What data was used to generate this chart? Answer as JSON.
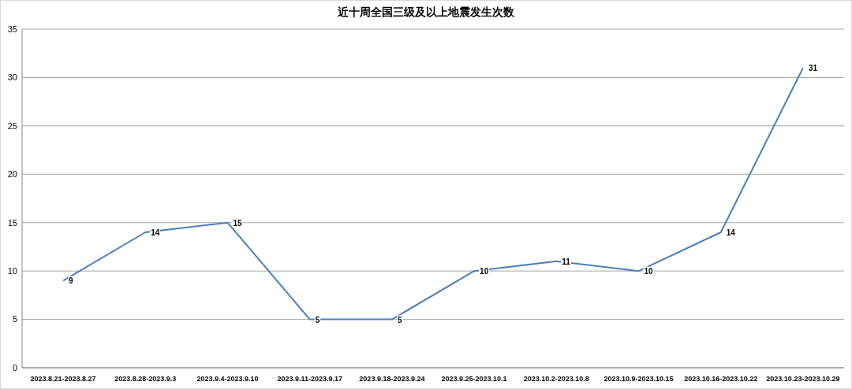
{
  "chart_data": {
    "type": "line",
    "title": "近十周全国三级及以上地震发生次数",
    "categories": [
      "2023.8.21-2023.8.27",
      "2023.8.28-2023.9.3",
      "2023.9.4-2023.9.10",
      "2023.9.11-2023.9.17",
      "2023.9.18-2023.9.24",
      "2023.9.25-2023.10.1",
      "2023.10.2-2023.10.8",
      "2023.10.9-2023.10.15",
      "2023.10.16-2023.10.22",
      "2023.10.23-2023.10.29"
    ],
    "values": [
      9,
      14,
      15,
      5,
      5,
      10,
      11,
      10,
      14,
      31
    ],
    "color": "#4a7ebb",
    "ylim": [
      0,
      35
    ],
    "yticks": [
      0,
      5,
      10,
      15,
      20,
      25,
      30,
      35
    ],
    "grid": "y",
    "data_labels": true,
    "marker": "none",
    "line_style": "solid"
  }
}
